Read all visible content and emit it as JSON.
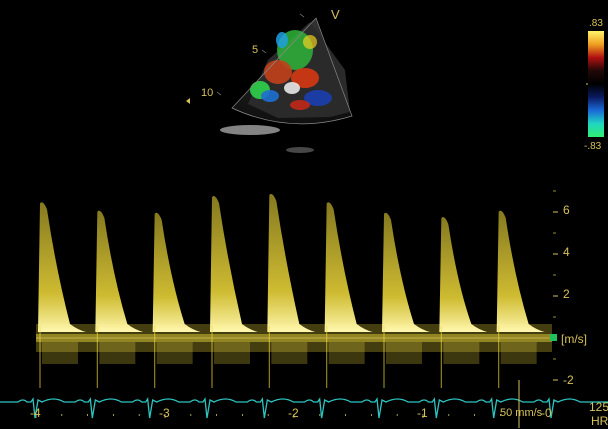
{
  "sector": {
    "marker": "V",
    "depth_labels": [
      "5",
      "10"
    ]
  },
  "color_scale": {
    "top_label": ".83",
    "bottom_label": "-.83",
    "gradient_colors": [
      "#fff56a",
      "#f0a020",
      "#b01010",
      "#200808",
      "#000000",
      "#0a1a60",
      "#1a6ad8",
      "#1fd6c0",
      "#30f070"
    ]
  },
  "doppler": {
    "velocity_ticks": [
      "6",
      "4",
      "2",
      "-2"
    ],
    "unit_label": "[m/s]",
    "time_ticks": [
      "-4",
      "-3",
      "-2",
      "-1",
      "-0"
    ],
    "sweep_speed": "50 mm/s",
    "heart_rate_value": "125",
    "heart_rate_label": "HR",
    "trace_color": "#f2dc3a",
    "ecg_color": "#2ec4c0",
    "envelope_peaks_m_s": [
      6.6,
      6.2,
      6.1,
      6.9,
      7.0,
      6.6,
      6.1,
      5.9,
      6.2
    ],
    "baseline_m_s": 0
  }
}
